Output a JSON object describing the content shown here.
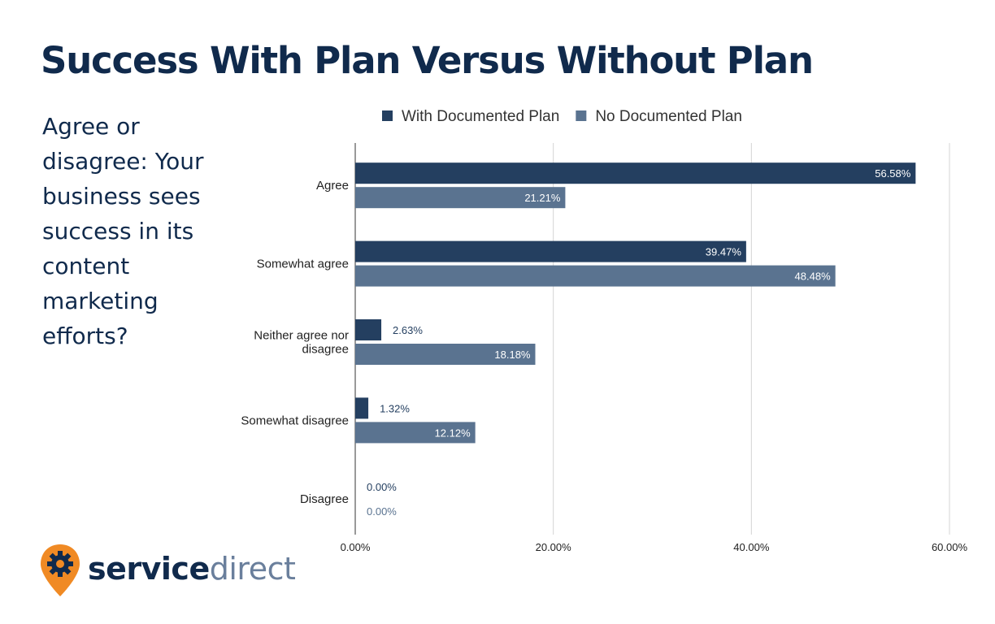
{
  "header": {
    "title": "Success With Plan Versus Without Plan",
    "question": "Agree or disagree: Your business sees success in its content marketing efforts?"
  },
  "brand": {
    "part1": "service",
    "part2": "direct",
    "logo_icon": "gear-map-pin-icon",
    "logo_color": "#f08a24"
  },
  "chart_data": {
    "type": "bar",
    "orientation": "horizontal",
    "categories": [
      "Agree",
      "Somewhat agree",
      "Neither agree nor disagree",
      "Somewhat disagree",
      "Disagree"
    ],
    "series": [
      {
        "name": "With Documented Plan",
        "color": "#243f60",
        "values": [
          56.58,
          39.47,
          2.63,
          1.32,
          0.0
        ]
      },
      {
        "name": "No Documented Plan",
        "color": "#5a7390",
        "values": [
          21.21,
          48.48,
          18.18,
          12.12,
          0.0
        ]
      }
    ],
    "xlim": [
      0,
      60
    ],
    "xticks": [
      "0.00%",
      "20.00%",
      "40.00%",
      "60.00%"
    ],
    "grid": true,
    "legend": "top"
  }
}
